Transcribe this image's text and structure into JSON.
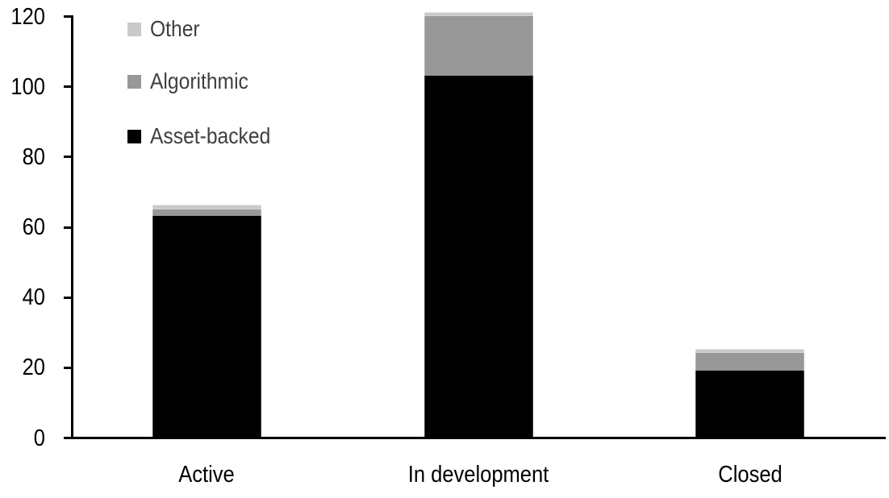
{
  "chart_data": {
    "type": "bar",
    "stacked": true,
    "title": "",
    "xlabel": "",
    "ylabel": "",
    "categories": [
      "Active",
      "In development",
      "Closed"
    ],
    "series": [
      {
        "name": "Asset-backed",
        "color": "#000000",
        "values": [
          63,
          103,
          19
        ]
      },
      {
        "name": "Algorithmic",
        "color": "#989898",
        "values": [
          2,
          17,
          5
        ]
      },
      {
        "name": "Other",
        "color": "#cacaca",
        "values": [
          1,
          1,
          1
        ]
      }
    ],
    "totals": [
      66,
      121,
      25
    ],
    "ylim": [
      0,
      120
    ],
    "yticks": [
      0,
      20,
      40,
      60,
      80,
      100,
      120
    ],
    "gridlines": false,
    "legend": {
      "position": "top-left",
      "order": [
        "Other",
        "Algorithmic",
        "Asset-backed"
      ]
    }
  },
  "colors": {
    "background": "#ffffff",
    "axis": "#000000",
    "tick_label": "#000000",
    "category_label": "#000000",
    "legend_text": "#3f3f3f"
  }
}
